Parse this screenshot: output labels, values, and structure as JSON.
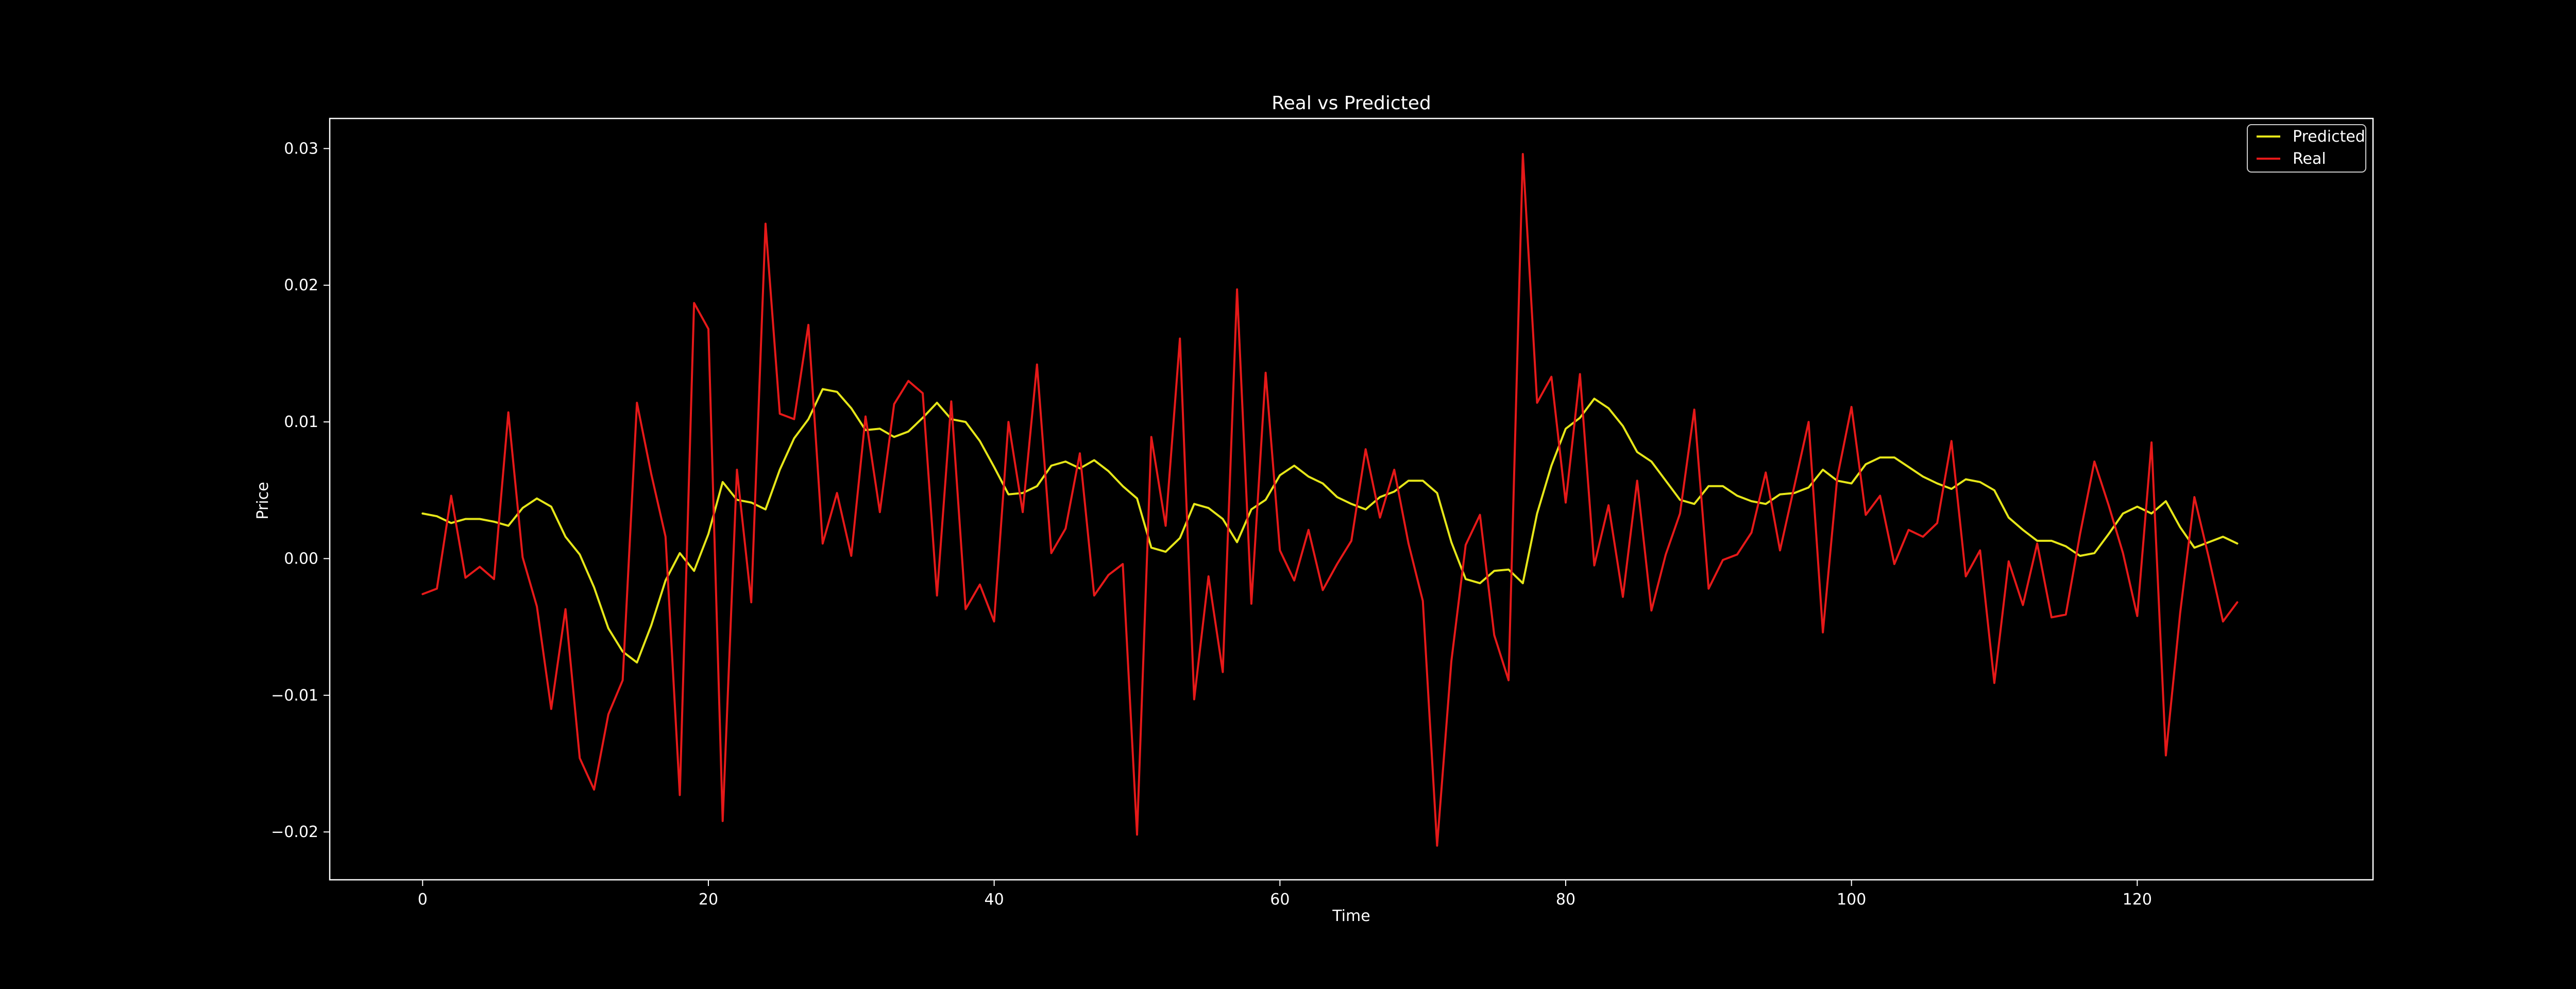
{
  "chart_data": {
    "type": "line",
    "title": "Real vs Predicted",
    "xlabel": "Time",
    "ylabel": "Price",
    "xlim": [
      -6.5,
      136.5
    ],
    "ylim": [
      -0.0235,
      0.0322
    ],
    "xticks": [
      0,
      20,
      40,
      60,
      80,
      100,
      120
    ],
    "xtick_labels": [
      "0",
      "20",
      "40",
      "60",
      "80",
      "100",
      "120"
    ],
    "yticks": [
      -0.02,
      -0.01,
      0.0,
      0.01,
      0.02,
      0.03
    ],
    "ytick_labels": [
      "−0.02",
      "−0.01",
      "0.00",
      "0.01",
      "0.02",
      "0.03"
    ],
    "grid": false,
    "legend_position": "top-right",
    "background": "#000000",
    "axes_color": "#ffffff",
    "series": [
      {
        "name": "Predicted",
        "color": "#e6e619",
        "values": [
          0.0033,
          0.0031,
          0.0026,
          0.0029,
          0.0029,
          0.0027,
          0.0024,
          0.0037,
          0.0044,
          0.0038,
          0.0016,
          0.0003,
          -0.0021,
          -0.0051,
          -0.0068,
          -0.0076,
          -0.0049,
          -0.0016,
          0.0004,
          -0.0009,
          0.0018,
          0.0056,
          0.0043,
          0.0041,
          0.0036,
          0.0065,
          0.0088,
          0.0102,
          0.0124,
          0.0122,
          0.011,
          0.0094,
          0.0095,
          0.0089,
          0.0093,
          0.0103,
          0.0114,
          0.0102,
          0.01,
          0.0086,
          0.0067,
          0.0047,
          0.0048,
          0.0053,
          0.0068,
          0.0071,
          0.0066,
          0.0072,
          0.0064,
          0.0053,
          0.0044,
          0.0008,
          0.0005,
          0.0015,
          0.004,
          0.0037,
          0.0029,
          0.0012,
          0.0036,
          0.0043,
          0.0061,
          0.0068,
          0.006,
          0.0055,
          0.0045,
          0.004,
          0.0036,
          0.0045,
          0.0049,
          0.0057,
          0.0057,
          0.0048,
          0.0012,
          -0.0015,
          -0.0018,
          -0.0009,
          -0.0008,
          -0.0018,
          0.0033,
          0.0068,
          0.0095,
          0.0103,
          0.0117,
          0.011,
          0.0097,
          0.0078,
          0.0071,
          0.0057,
          0.0043,
          0.004,
          0.0053,
          0.0053,
          0.0046,
          0.0042,
          0.004,
          0.0047,
          0.0048,
          0.0052,
          0.0065,
          0.0057,
          0.0055,
          0.0069,
          0.0074,
          0.0074,
          0.0067,
          0.006,
          0.0055,
          0.0051,
          0.0058,
          0.0056,
          0.005,
          0.003,
          0.0021,
          0.0013,
          0.0013,
          0.0009,
          0.0002,
          0.0004,
          0.0018,
          0.0033,
          0.0038,
          0.0033,
          0.0042,
          0.0023,
          0.0008,
          0.0012,
          0.0016,
          0.0011
        ]
      },
      {
        "name": "Real",
        "color": "#e61919",
        "values": [
          -0.0026,
          -0.0022,
          0.0046,
          -0.0014,
          -0.0006,
          -0.0015,
          0.0107,
          0.0001,
          -0.0035,
          -0.011,
          -0.0037,
          -0.0146,
          -0.0169,
          -0.0114,
          -0.0089,
          0.0114,
          0.0062,
          0.0016,
          -0.0173,
          0.0187,
          0.0168,
          -0.0192,
          0.0065,
          -0.0032,
          0.0245,
          0.0106,
          0.0102,
          0.0171,
          0.0011,
          0.0048,
          0.0002,
          0.0104,
          0.0034,
          0.0113,
          0.013,
          0.0121,
          -0.0027,
          0.0115,
          -0.0037,
          -0.0019,
          -0.0046,
          0.01,
          0.0034,
          0.0142,
          0.0004,
          0.0022,
          0.0077,
          -0.0027,
          -0.0012,
          -0.0004,
          -0.0202,
          0.0089,
          0.0024,
          0.0161,
          -0.0103,
          -0.0013,
          -0.0083,
          0.0197,
          -0.0033,
          0.0136,
          0.0006,
          -0.0016,
          0.0021,
          -0.0023,
          -0.0004,
          0.0013,
          0.008,
          0.003,
          0.0065,
          0.0011,
          -0.0031,
          -0.021,
          -0.0075,
          0.001,
          0.0032,
          -0.0056,
          -0.0089,
          0.0296,
          0.0114,
          0.0133,
          0.0041,
          0.0135,
          -0.0005,
          0.0039,
          -0.0028,
          0.0057,
          -0.0038,
          0.0003,
          0.0033,
          0.0109,
          -0.0022,
          -0.0001,
          0.0003,
          0.0019,
          0.0063,
          0.0006,
          0.0053,
          0.01,
          -0.0054,
          0.0059,
          0.0111,
          0.0032,
          0.0046,
          -0.0004,
          0.0021,
          0.0016,
          0.0026,
          0.0086,
          -0.0013,
          0.0006,
          -0.0091,
          -0.0002,
          -0.0034,
          0.0011,
          -0.0043,
          -0.0041,
          0.0018,
          0.0071,
          0.0039,
          0.0004,
          -0.0042,
          0.0085,
          -0.0144,
          -0.004,
          0.0045,
          0.0001,
          -0.0046,
          -0.0032
        ]
      }
    ]
  }
}
